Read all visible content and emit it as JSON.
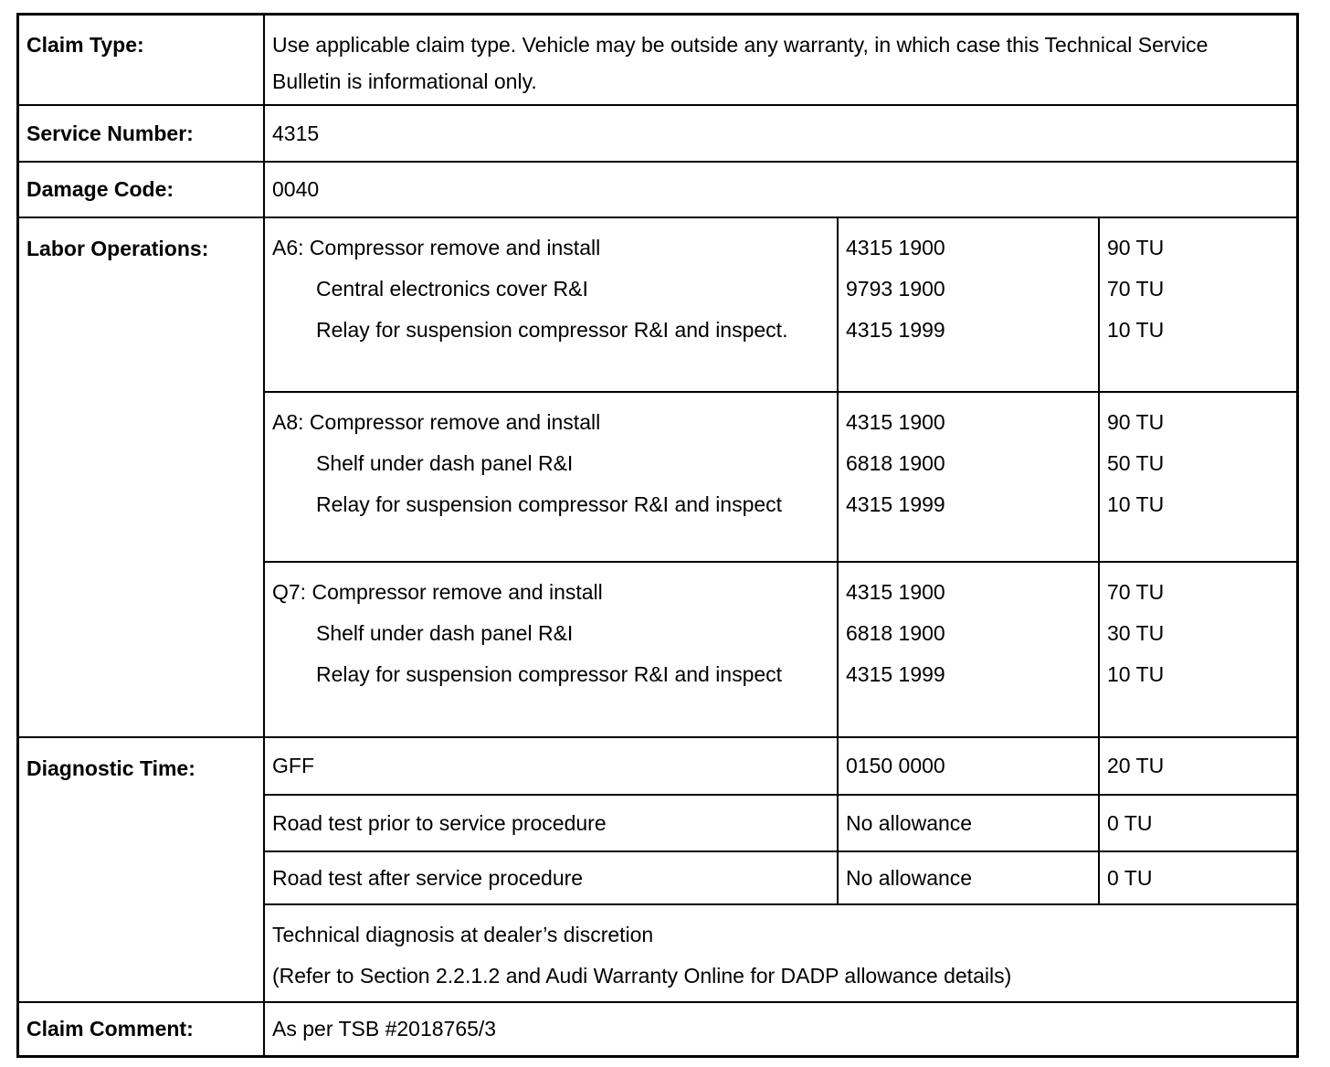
{
  "claim_type": {
    "label": "Claim Type:",
    "value": "Use applicable claim type. Vehicle may be outside any warranty, in which case this Technical Service Bulletin is informational only."
  },
  "service_number": {
    "label": "Service Number:",
    "value": "4315"
  },
  "damage_code": {
    "label": "Damage Code:",
    "value": "0040"
  },
  "labor_operations": {
    "label": "Labor Operations:",
    "groups": [
      {
        "model": "A6",
        "operations": [
          {
            "name": "A6: Compressor remove and install",
            "code": "4315 1900",
            "time": "90 TU"
          },
          {
            "name": "Central electronics cover R&I",
            "code": "9793 1900",
            "time": "70 TU"
          },
          {
            "name": "Relay for suspension compressor R&I and inspect.",
            "code": "4315 1999",
            "time": "10 TU"
          }
        ]
      },
      {
        "model": "A8",
        "operations": [
          {
            "name": "A8: Compressor remove and install",
            "code": "4315 1900",
            "time": "90 TU"
          },
          {
            "name": "Shelf under dash panel R&I",
            "code": "6818 1900",
            "time": "50 TU"
          },
          {
            "name": "Relay for suspension compressor R&I and inspect",
            "code": "4315 1999",
            "time": "10 TU"
          }
        ]
      },
      {
        "model": "Q7",
        "operations": [
          {
            "name": "Q7: Compressor remove and install",
            "code": "4315 1900",
            "time": "70 TU"
          },
          {
            "name": "Shelf under dash panel R&I",
            "code": "6818 1900",
            "time": "30 TU"
          },
          {
            "name": "Relay for suspension compressor R&I and inspect",
            "code": "4315 1999",
            "time": "10 TU"
          }
        ]
      }
    ]
  },
  "diagnostic_time": {
    "label": "Diagnostic Time:",
    "rows": [
      {
        "name": "GFF",
        "code": "0150 0000",
        "time": "20 TU"
      },
      {
        "name": "Road test prior to service procedure",
        "code": "No allowance",
        "time": "0 TU"
      },
      {
        "name": "Road test after service procedure",
        "code": "No allowance",
        "time": "0 TU"
      }
    ],
    "note": {
      "line1": "Technical diagnosis at dealer’s discretion",
      "line2": "(Refer to Section 2.2.1.2 and Audi Warranty Online for DADP allowance details)"
    }
  },
  "claim_comment": {
    "label": "Claim Comment:",
    "value": "As per TSB #2018765/3"
  }
}
